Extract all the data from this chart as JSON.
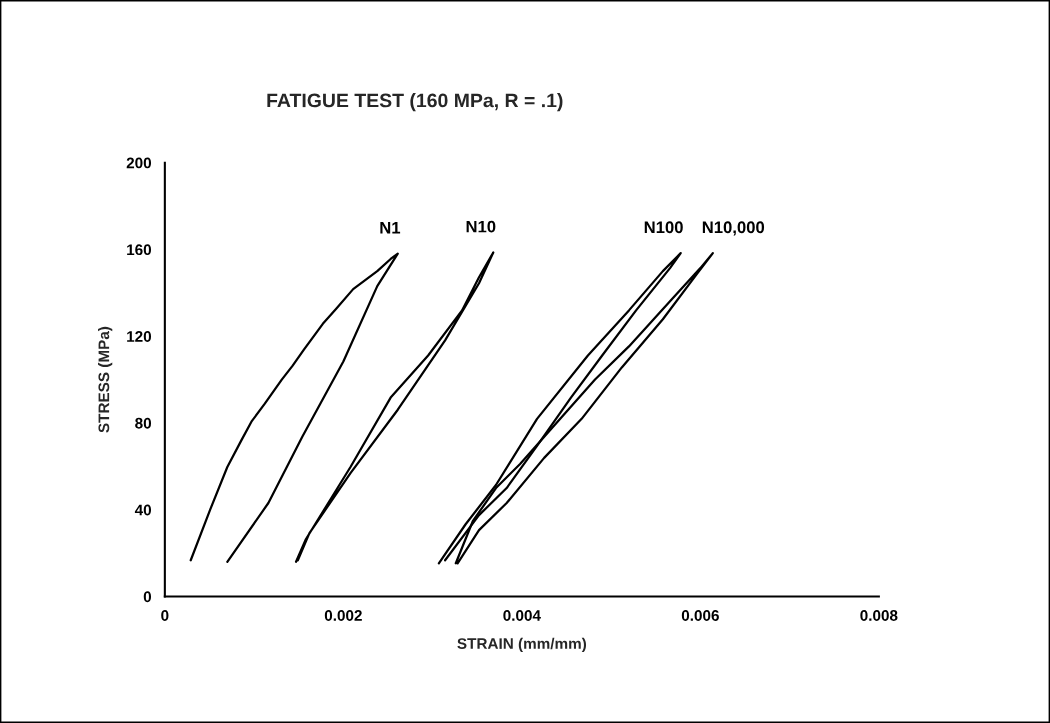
{
  "chart_data": {
    "type": "line",
    "title": "FATIGUE TEST (160 MPa, R = .1)",
    "xlabel": "STRAIN (mm/mm)",
    "ylabel": "STRESS (MPa)",
    "xlim": [
      0,
      0.008
    ],
    "ylim": [
      0,
      200
    ],
    "xticks": [
      {
        "value": 0,
        "label": "0"
      },
      0.002,
      0.004,
      0.006,
      0.008
    ],
    "yticks": [
      0,
      40,
      80,
      120,
      160,
      200
    ],
    "grid": false,
    "legend": false,
    "marker": "none",
    "line_style": "solid",
    "series": [
      {
        "name": "N1",
        "color": "#000000",
        "x": [
          0.00029,
          0.00051,
          0.0007,
          0.00086,
          0.00097,
          0.00112,
          0.00131,
          0.00143,
          0.00156,
          0.00177,
          0.00192,
          0.00211,
          0.00238,
          0.00253,
          0.00261,
          0.00238,
          0.002,
          0.00154,
          0.00116,
          0.0007
        ],
        "values": [
          16.7,
          40.3,
          59.7,
          72.2,
          80.6,
          88.9,
          100.0,
          106.3,
          113.9,
          125.7,
          132.6,
          141.7,
          150.0,
          155.6,
          158.1,
          143.1,
          108.3,
          73.6,
          43.1,
          16.0
        ]
      },
      {
        "name": "N10",
        "color": "#000000",
        "x": [
          0.00147,
          0.00158,
          0.00181,
          0.00208,
          0.00253,
          0.00295,
          0.00333,
          0.00352,
          0.00368,
          0.00352,
          0.00314,
          0.00261,
          0.00208,
          0.00162,
          0.00149
        ],
        "values": [
          16.0,
          26.4,
          41.7,
          59.7,
          91.7,
          111.1,
          131.9,
          147.2,
          158.6,
          144.4,
          118.1,
          86.1,
          56.9,
          29.2,
          16.7
        ]
      },
      {
        "name": "N100",
        "color": "#000000",
        "x": [
          0.00307,
          0.00337,
          0.00371,
          0.00417,
          0.00474,
          0.0052,
          0.00558,
          0.00578,
          0.00566,
          0.00528,
          0.0049,
          0.00455,
          0.00417,
          0.00383,
          0.00352,
          0.00314
        ],
        "values": [
          15.3,
          33.3,
          51.4,
          81.9,
          111.1,
          131.9,
          150.0,
          158.3,
          151.4,
          131.9,
          111.1,
          91.7,
          69.4,
          50.0,
          37.5,
          16.7
        ]
      },
      {
        "name": "N10,000",
        "color": "#000000",
        "x": [
          0.00326,
          0.00345,
          0.00371,
          0.00398,
          0.0044,
          0.00482,
          0.0052,
          0.00566,
          0.006,
          0.00614,
          0.00596,
          0.00558,
          0.00512,
          0.00467,
          0.00425,
          0.00383,
          0.00352,
          0.00328
        ],
        "values": [
          15.3,
          34.7,
          50.0,
          61.1,
          80.6,
          100.0,
          115.3,
          136.1,
          151.4,
          158.3,
          148.6,
          127.8,
          105.6,
          81.9,
          63.9,
          43.1,
          30.6,
          15.3
        ]
      }
    ]
  }
}
